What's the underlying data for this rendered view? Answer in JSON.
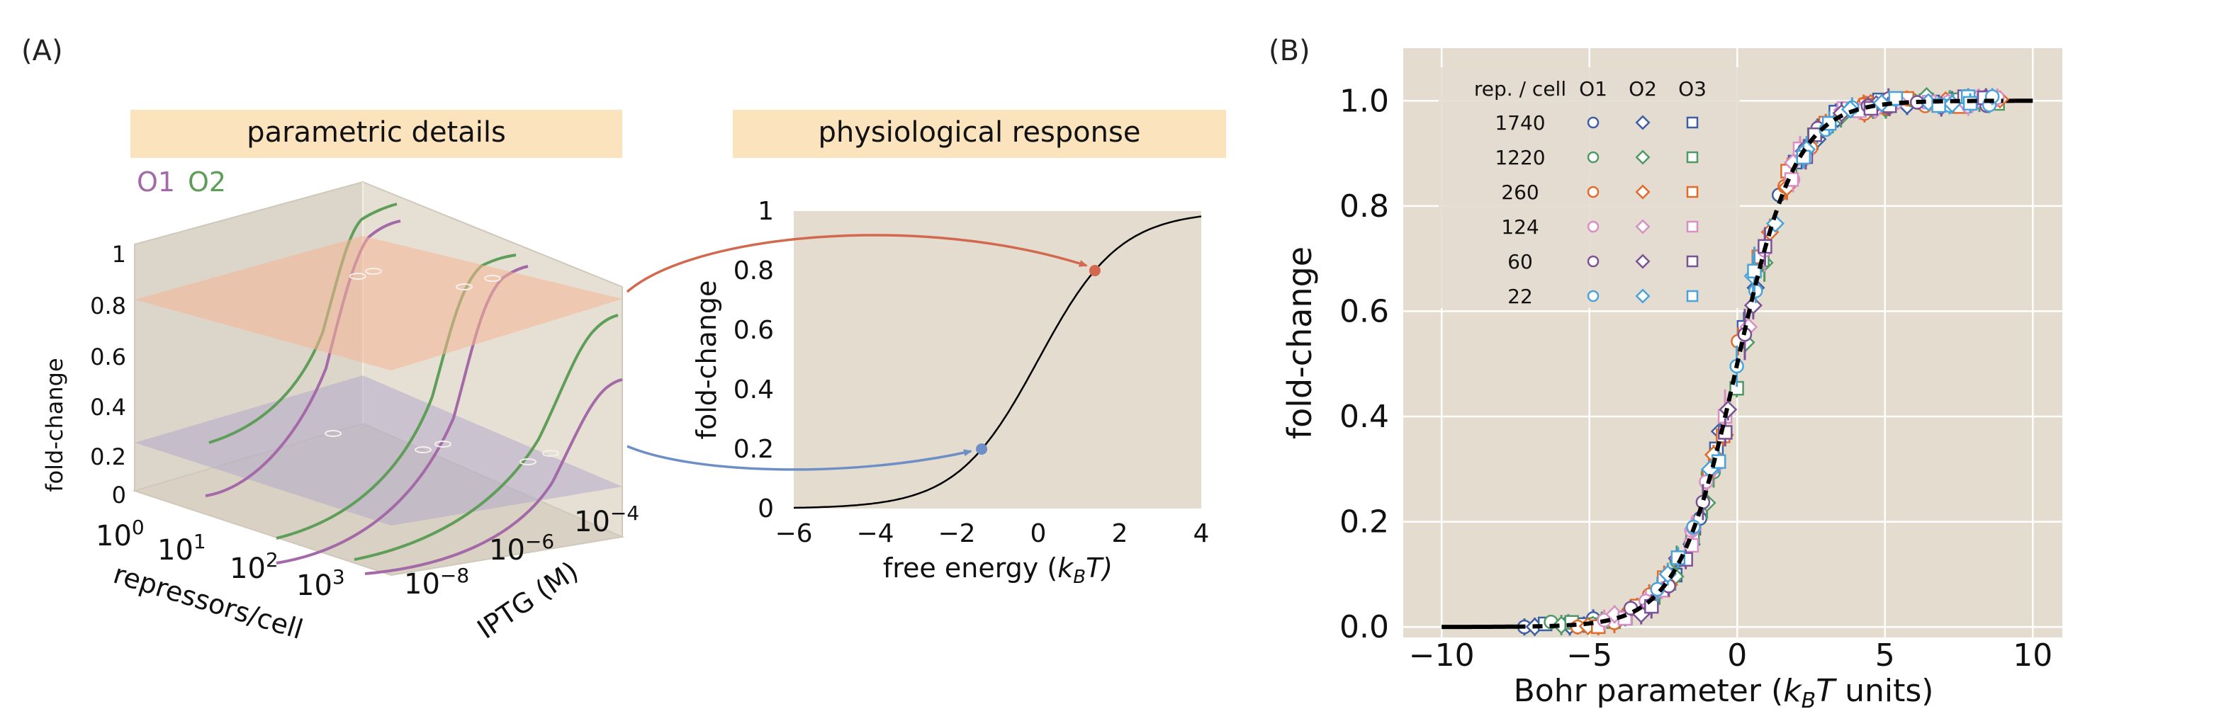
{
  "panels": {
    "a_label": "(A)",
    "b_label": "(B)"
  },
  "colors": {
    "background": "#e3dccf",
    "banner": "#fbe3bd",
    "o1": "#a46aa8",
    "o2": "#5f9e58",
    "high_plane": "#f5b594",
    "low_plane": "#b2a9c9",
    "arrow_high": "#d2694e",
    "arrow_low": "#6e8fc6",
    "master_curve": "#000000"
  },
  "panel_a": {
    "box3d": {
      "banner": "parametric details",
      "legend": [
        "O1",
        "O2"
      ],
      "z_label": "fold-change",
      "z_ticks": [
        "1",
        "0.8",
        "0.6",
        "0.4",
        "0.2",
        "0"
      ],
      "x_label": "repressors/cell",
      "x_ticks": [
        {
          "base": "10",
          "exp": "0"
        },
        {
          "base": "10",
          "exp": "1"
        },
        {
          "base": "10",
          "exp": "2"
        },
        {
          "base": "10",
          "exp": "3"
        }
      ],
      "y_label": "IPTG (M)",
      "y_ticks": [
        {
          "base": "10",
          "exp": "−8"
        },
        {
          "base": "10",
          "exp": "−6"
        },
        {
          "base": "10",
          "exp": "−4"
        }
      ],
      "planes": {
        "high": 0.8,
        "low": 0.2
      }
    },
    "response": {
      "banner": "physiological response",
      "ylabel": "fold-change",
      "xlabel_prefix": "free energy (",
      "xlabel_symbol": "k",
      "xlabel_sub": "B",
      "xlabel_suffix": "T)",
      "xlim": [
        -6,
        4
      ],
      "ylim": [
        0,
        1
      ],
      "x_ticks": [
        -6,
        -4,
        -2,
        0,
        2,
        4
      ],
      "x_tick_labels": [
        "−6",
        "−4",
        "−2",
        "0",
        "2",
        "4"
      ],
      "y_ticks": [
        0,
        0.2,
        0.4,
        0.6,
        0.8,
        1
      ],
      "y_tick_labels": [
        "0",
        "0.2",
        "0.4",
        "0.6",
        "0.8",
        "1"
      ],
      "markers": [
        {
          "x": 1.39,
          "y": 0.8,
          "color": "#d2694e"
        },
        {
          "x": -1.39,
          "y": 0.2,
          "color": "#6e8fc6"
        }
      ]
    }
  },
  "chart_data": [
    {
      "type": "line",
      "panel": "A-right",
      "title": "physiological response",
      "xlabel": "free energy (k_B T)",
      "ylabel": "fold-change",
      "xlim": [
        -6,
        4
      ],
      "ylim": [
        0,
        1
      ],
      "function": "fold-change = 1 / (1 + exp(-F))",
      "x": [
        -6,
        -5,
        -4,
        -3,
        -2,
        -1.39,
        -1,
        0,
        1,
        1.39,
        2,
        3,
        4
      ],
      "y": [
        0.002,
        0.007,
        0.018,
        0.047,
        0.119,
        0.2,
        0.269,
        0.5,
        0.731,
        0.8,
        0.881,
        0.953,
        0.982
      ],
      "highlighted_points": [
        {
          "x": 1.39,
          "y": 0.8
        },
        {
          "x": -1.39,
          "y": 0.2
        }
      ]
    },
    {
      "type": "scatter",
      "panel": "B",
      "xlabel_prefix": "Bohr parameter (",
      "xlabel_symbol": "k",
      "xlabel_sub": "B",
      "xlabel_symbol2": "T",
      "xlabel_suffix": " units)",
      "ylabel": "fold-change",
      "xlim": [
        -11.3,
        11.0
      ],
      "ylim": [
        -0.02,
        1.1
      ],
      "x_ticks": [
        -10,
        -5,
        0,
        5,
        10
      ],
      "x_tick_labels": [
        "−10",
        "−5",
        "0",
        "5",
        "10"
      ],
      "y_ticks": [
        0,
        0.2,
        0.4,
        0.6,
        0.8,
        1.0
      ],
      "y_tick_labels": [
        "0.0",
        "0.2",
        "0.4",
        "0.6",
        "0.8",
        "1.0"
      ],
      "grid": true,
      "legend_position": "top-left",
      "legend_header": [
        "rep. / cell",
        "O1",
        "O2",
        "O3"
      ],
      "legend_marker_shapes": {
        "O1": "circle",
        "O2": "diamond",
        "O3": "square"
      },
      "series": [
        {
          "rep_per_cell": "1740",
          "color": "#3e5fa3"
        },
        {
          "rep_per_cell": "1220",
          "color": "#4f9a64"
        },
        {
          "rep_per_cell": "260",
          "color": "#e06b2b"
        },
        {
          "rep_per_cell": "124",
          "color": "#d88fc4"
        },
        {
          "rep_per_cell": "60",
          "color": "#7a5296"
        },
        {
          "rep_per_cell": "22",
          "color": "#4aa3d8"
        }
      ],
      "master_curve": {
        "function": "fold-change = 1 / (1 + exp(-F))",
        "x_range": [
          -10,
          10
        ],
        "style": "black, solid outside data, dashed through data"
      },
      "data_x_range": [
        -7.5,
        9.0
      ]
    }
  ]
}
